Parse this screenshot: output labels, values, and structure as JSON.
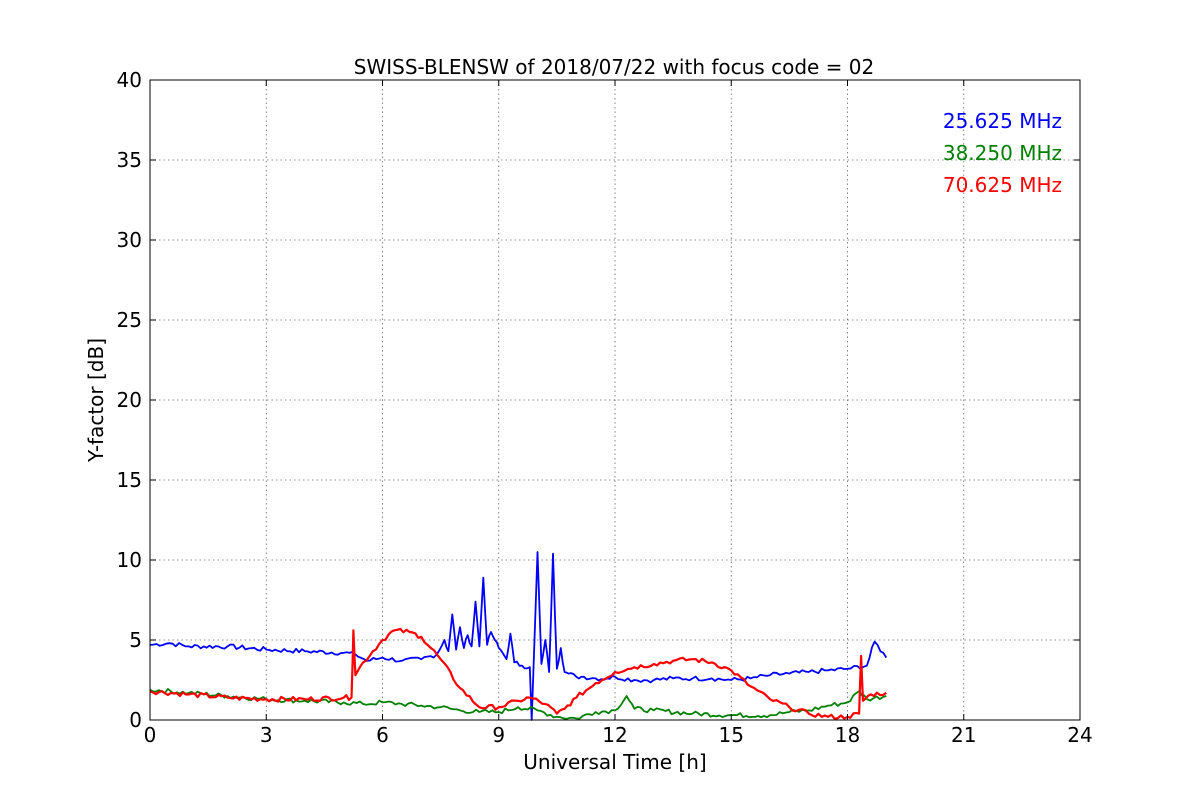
{
  "chart_data": {
    "type": "line",
    "title": "SWISS-BLENSW of 2018/07/22 with focus code = 02",
    "xlabel": "Universal Time [h]",
    "ylabel": "Y-factor [dB]",
    "xlim": [
      0,
      24
    ],
    "ylim": [
      0,
      40
    ],
    "xticks": [
      "0",
      "3",
      "6",
      "9",
      "12",
      "15",
      "18",
      "21",
      "24"
    ],
    "yticks": [
      "0",
      "5",
      "10",
      "15",
      "20",
      "25",
      "30",
      "35",
      "40"
    ],
    "grid": true,
    "legend_position": "top-right",
    "series": [
      {
        "name": "25.625 MHz",
        "color": "#0000ff",
        "x": [
          0,
          0.5,
          1,
          2,
          3,
          4,
          5,
          5.3,
          5.6,
          6,
          6.5,
          7,
          7.4,
          7.6,
          7.7,
          7.8,
          7.9,
          8.0,
          8.1,
          8.2,
          8.3,
          8.4,
          8.5,
          8.6,
          8.7,
          8.8,
          8.9,
          9.0,
          9.1,
          9.2,
          9.3,
          9.4,
          9.6,
          9.8,
          9.85,
          9.9,
          10.0,
          10.1,
          10.2,
          10.3,
          10.4,
          10.5,
          10.6,
          10.7,
          10.8,
          11.0,
          11.2,
          11.5,
          11.8,
          12.0,
          12.5,
          13.0,
          13.5,
          14.0,
          14.5,
          15.0,
          15.5,
          16.0,
          16.5,
          17.0,
          17.5,
          18.0,
          18.5,
          18.7,
          19.0
        ],
        "y": [
          4.7,
          4.8,
          4.6,
          4.6,
          4.4,
          4.3,
          4.2,
          4.1,
          3.7,
          3.9,
          3.7,
          3.8,
          4.1,
          5.0,
          4.3,
          6.6,
          4.4,
          5.8,
          4.5,
          5.3,
          4.6,
          7.4,
          4.6,
          8.9,
          4.7,
          5.5,
          5.0,
          4.5,
          4.2,
          3.8,
          5.4,
          3.6,
          3.4,
          3.3,
          0.0,
          3.4,
          10.5,
          3.5,
          5.0,
          3.0,
          10.4,
          3.2,
          4.5,
          3.0,
          2.9,
          2.7,
          2.7,
          2.6,
          2.6,
          2.7,
          2.5,
          2.5,
          2.6,
          2.6,
          2.6,
          2.5,
          2.6,
          2.8,
          2.9,
          3.0,
          3.1,
          3.2,
          3.4,
          4.9,
          3.9
        ]
      },
      {
        "name": "38.250 MHz",
        "color": "#008000",
        "x": [
          0,
          1,
          2,
          3,
          4,
          5,
          5.5,
          6,
          6.5,
          7,
          7.5,
          8,
          8.5,
          9,
          9.5,
          10,
          10.5,
          11,
          11.5,
          12,
          12.3,
          12.5,
          13,
          14,
          15,
          16,
          16.5,
          17,
          17.5,
          18,
          18.3,
          18.5,
          19
        ],
        "y": [
          1.9,
          1.7,
          1.5,
          1.3,
          1.2,
          1.1,
          1.0,
          1.1,
          1.0,
          0.9,
          0.8,
          0.6,
          0.5,
          0.5,
          0.8,
          0.6,
          0.2,
          0.1,
          0.5,
          0.6,
          1.5,
          0.7,
          0.6,
          0.4,
          0.3,
          0.3,
          0.5,
          0.6,
          0.9,
          1.1,
          1.8,
          1.3,
          1.5
        ]
      },
      {
        "name": "70.625 MHz",
        "color": "#ff0000",
        "x": [
          0,
          1,
          2,
          3,
          4,
          5,
          5.2,
          5.25,
          5.3,
          5.5,
          6,
          6.3,
          6.7,
          7,
          7.5,
          8,
          8.5,
          9,
          9.5,
          9.8,
          10.2,
          10.5,
          10.7,
          11,
          11.5,
          12,
          12.5,
          13,
          13.5,
          14,
          14.5,
          15,
          15.5,
          16,
          16.5,
          17,
          17.5,
          18,
          18.3,
          18.35,
          18.4,
          18.6,
          19
        ],
        "y": [
          1.8,
          1.6,
          1.4,
          1.3,
          1.3,
          1.4,
          1.4,
          5.6,
          2.8,
          3.6,
          5.0,
          5.6,
          5.5,
          5.2,
          3.8,
          2.0,
          0.8,
          0.8,
          1.2,
          1.4,
          1.0,
          0.4,
          0.7,
          1.4,
          2.3,
          3.0,
          3.3,
          3.5,
          3.7,
          3.8,
          3.6,
          3.1,
          2.1,
          1.3,
          0.8,
          0.4,
          0.2,
          0.2,
          0.4,
          4.0,
          1.2,
          1.6,
          1.7
        ]
      }
    ]
  }
}
